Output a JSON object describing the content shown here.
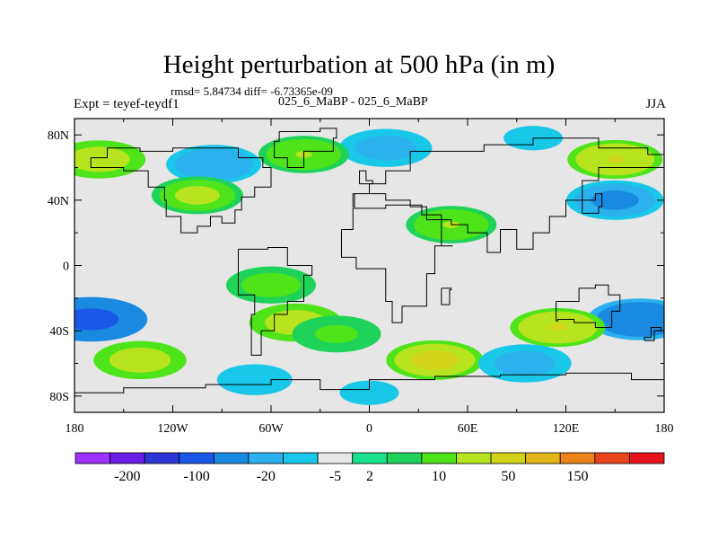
{
  "chart_data": {
    "type": "heatmap",
    "title": "Height perturbation at 500 hPa (in m)",
    "subtitle_stats": "rmsd= 5.84734 diff= -6.73365e-09",
    "left_label": "Expt = teyef-teydf1",
    "center_label": "025_6_MaBP - 025_6_MaBP",
    "right_label": "JJA",
    "x_tick_labels": [
      "180",
      "120W",
      "60W",
      "0",
      "60E",
      "120E",
      "180"
    ],
    "x_tick_values": [
      -180,
      -120,
      -60,
      0,
      60,
      120,
      180
    ],
    "y_tick_labels": [
      "80N",
      "40N",
      "0",
      "40S",
      "80S"
    ],
    "y_tick_values": [
      80,
      40,
      0,
      -40,
      -80
    ],
    "xlim": [
      -180,
      180
    ],
    "ylim": [
      -90,
      90
    ],
    "colorbar": {
      "colors": [
        "#9b30ff",
        "#6a1ee6",
        "#2c35d6",
        "#1a57e6",
        "#1a8ae0",
        "#2bb2ee",
        "#19c8e8",
        "#e6e6e6",
        "#19e18e",
        "#1ed25a",
        "#4fe31a",
        "#b7e41e",
        "#d3d41a",
        "#e2b51a",
        "#ec821a",
        "#e8461a",
        "#e6141a"
      ],
      "tick_labels": [
        "-200",
        "-100",
        "-20",
        "-5",
        "2",
        "10",
        "50",
        "150"
      ],
      "tick_boundaries": [
        1,
        3,
        5,
        7,
        8,
        10,
        12,
        14
      ]
    },
    "field_features": [
      {
        "lon": -170,
        "lat": -33,
        "value": -60
      },
      {
        "lon": 165,
        "lat": -33,
        "value": -40
      },
      {
        "lon": 150,
        "lat": 40,
        "value": -25
      },
      {
        "lon": -95,
        "lat": 62,
        "value": -20
      },
      {
        "lon": 10,
        "lat": 72,
        "value": -15
      },
      {
        "lon": -60,
        "lat": -12,
        "value": 8
      },
      {
        "lon": -45,
        "lat": -35,
        "value": 15
      },
      {
        "lon": 40,
        "lat": -58,
        "value": 25
      },
      {
        "lon": -140,
        "lat": -58,
        "value": 15
      },
      {
        "lon": 115,
        "lat": -38,
        "value": 20
      },
      {
        "lon": 150,
        "lat": 65,
        "value": 20
      },
      {
        "lon": -165,
        "lat": 65,
        "value": 15
      },
      {
        "lon": -105,
        "lat": 43,
        "value": 12
      },
      {
        "lon": -40,
        "lat": 68,
        "value": 10
      },
      {
        "lon": 50,
        "lat": 25,
        "value": 10
      },
      {
        "lon": 95,
        "lat": -60,
        "value": -15
      },
      {
        "lon": -70,
        "lat": -70,
        "value": -10
      },
      {
        "lon": 0,
        "lat": -78,
        "value": -8
      },
      {
        "lon": 100,
        "lat": 78,
        "value": -8
      },
      {
        "lon": -20,
        "lat": -42,
        "value": 6
      }
    ]
  }
}
